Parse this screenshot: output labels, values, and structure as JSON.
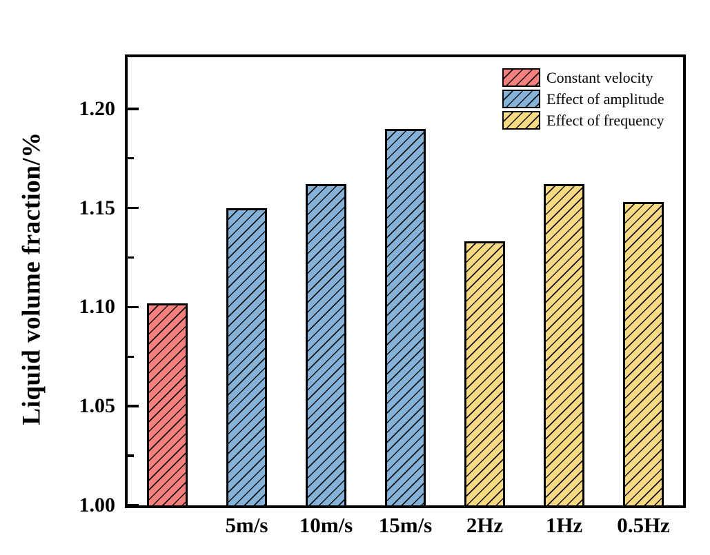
{
  "chart_data": {
    "type": "bar",
    "title": "",
    "xlabel": "",
    "ylabel": "Liquid volume fraction/%",
    "ylim": [
      1.0,
      1.226
    ],
    "yticks": [
      {
        "value": 1.0,
        "label": "1.00"
      },
      {
        "value": 1.05,
        "label": "1.05"
      },
      {
        "value": 1.1,
        "label": "1.10"
      },
      {
        "value": 1.15,
        "label": "1.15"
      },
      {
        "value": 1.2,
        "label": "1.20"
      }
    ],
    "yticks_minor": [
      1.025,
      1.075,
      1.125,
      1.175
    ],
    "grid": false,
    "hatch": "forward-diagonal",
    "legend_position": "top-right-inside",
    "axis_color": "#000000",
    "background_color": "#ffffff",
    "series": [
      {
        "name": "Constant velocity",
        "color": "#F5807E"
      },
      {
        "name": "Effect of amplitude",
        "color": "#85B2D8"
      },
      {
        "name": "Effect of frequency",
        "color": "#F8DA85"
      }
    ],
    "categories": [
      "",
      "5m/s",
      "10m/s",
      "15m/s",
      "2Hz",
      "1Hz",
      "0.5Hz"
    ],
    "bars": [
      {
        "category": "",
        "value": 1.102,
        "series": "Constant velocity"
      },
      {
        "category": "5m/s",
        "value": 1.15,
        "series": "Effect of amplitude"
      },
      {
        "category": "10m/s",
        "value": 1.162,
        "series": "Effect of amplitude"
      },
      {
        "category": "15m/s",
        "value": 1.19,
        "series": "Effect of amplitude"
      },
      {
        "category": "2Hz",
        "value": 1.133,
        "series": "Effect of frequency"
      },
      {
        "category": "1Hz",
        "value": 1.162,
        "series": "Effect of frequency"
      },
      {
        "category": "0.5Hz",
        "value": 1.153,
        "series": "Effect of frequency"
      }
    ]
  }
}
